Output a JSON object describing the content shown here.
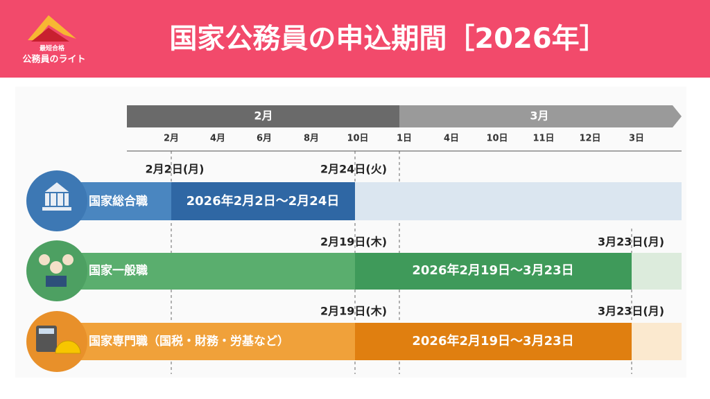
{
  "header": {
    "logo_badge": "最短合格",
    "logo_name": "公務員のライト",
    "title": "国家公務員の申込期間［2026年］"
  },
  "timeline": {
    "months": [
      "2月",
      "3月"
    ],
    "ticks": [
      "2月",
      "4月",
      "6月",
      "8月",
      "10日",
      "1日",
      "4日",
      "10日",
      "11日",
      "12日",
      "3日"
    ]
  },
  "rows": [
    {
      "name": "国家総合職",
      "start_label": "2月2日(月)",
      "end_label": "2月24日(火)",
      "period": "2026年2月2日～2月24日"
    },
    {
      "name": "国家一般職",
      "start_label": "2月19日(木)",
      "end_label": "3月23日(月)",
      "period": "2026年2月19日～3月23日"
    },
    {
      "name": "国家専門職（国税・財務・労基など）",
      "start_label": "2月19日(木)",
      "end_label": "3月23日(月)",
      "period": "2026年2月19日～3月23日"
    }
  ]
}
